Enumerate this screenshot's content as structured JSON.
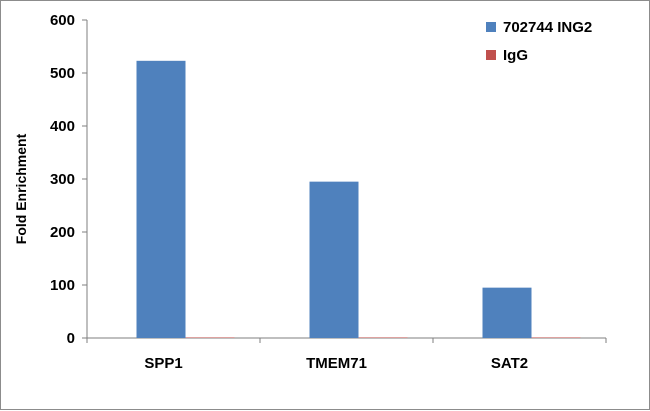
{
  "chart_data": {
    "type": "bar",
    "categories": [
      "SPP1",
      "TMEM71",
      "SAT2"
    ],
    "series": [
      {
        "name": "702744 ING2",
        "values": [
          523,
          295,
          95
        ],
        "color": "#4f81bd"
      },
      {
        "name": "IgG",
        "values": [
          1,
          1,
          1
        ],
        "color": "#c0504d"
      }
    ],
    "title": "",
    "xlabel": "",
    "ylabel": "Fold Enrichment",
    "ylim": [
      0,
      600
    ],
    "yticks": [
      0,
      100,
      200,
      300,
      400,
      500,
      600
    ],
    "grid": false,
    "legend_position": "top-right"
  }
}
